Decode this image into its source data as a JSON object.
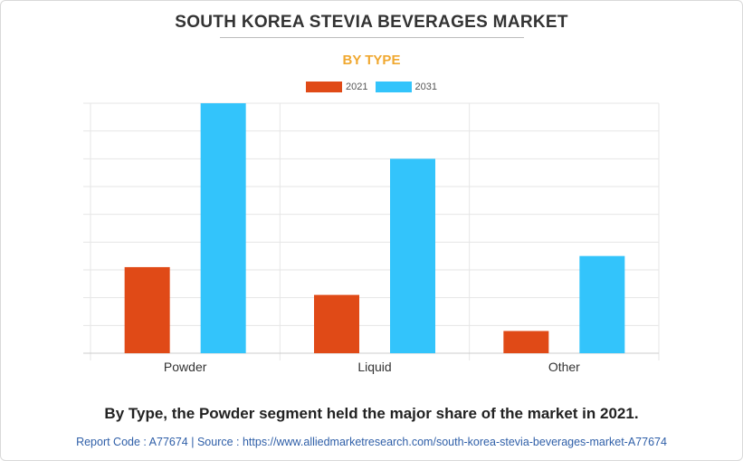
{
  "header": {
    "title": "SOUTH KOREA STEVIA BEVERAGES MARKET",
    "subtitle": "BY TYPE"
  },
  "caption": "By Type, the Powder segment held the major share of the market in 2021.",
  "footer": {
    "text": "Report Code : A77674  |  Source : https://www.alliedmarketresearch.com/south-korea-stevia-beverages-market-A77674"
  },
  "colors": {
    "series_2021": "#e04a17",
    "series_2031": "#33c4fb",
    "subtitle": "#f0a830",
    "footer_link": "#2f5fa8"
  },
  "chart_data": {
    "type": "bar",
    "title": "",
    "xlabel": "",
    "ylabel": "",
    "categories": [
      "Powder",
      "Liquid",
      "Other"
    ],
    "series": [
      {
        "name": "2021",
        "values": [
          3.1,
          2.1,
          0.8
        ]
      },
      {
        "name": "2031",
        "values": [
          9.0,
          7.0,
          3.5
        ]
      }
    ],
    "ylim": [
      0,
      9
    ],
    "grid": true,
    "legend": "top-center"
  }
}
